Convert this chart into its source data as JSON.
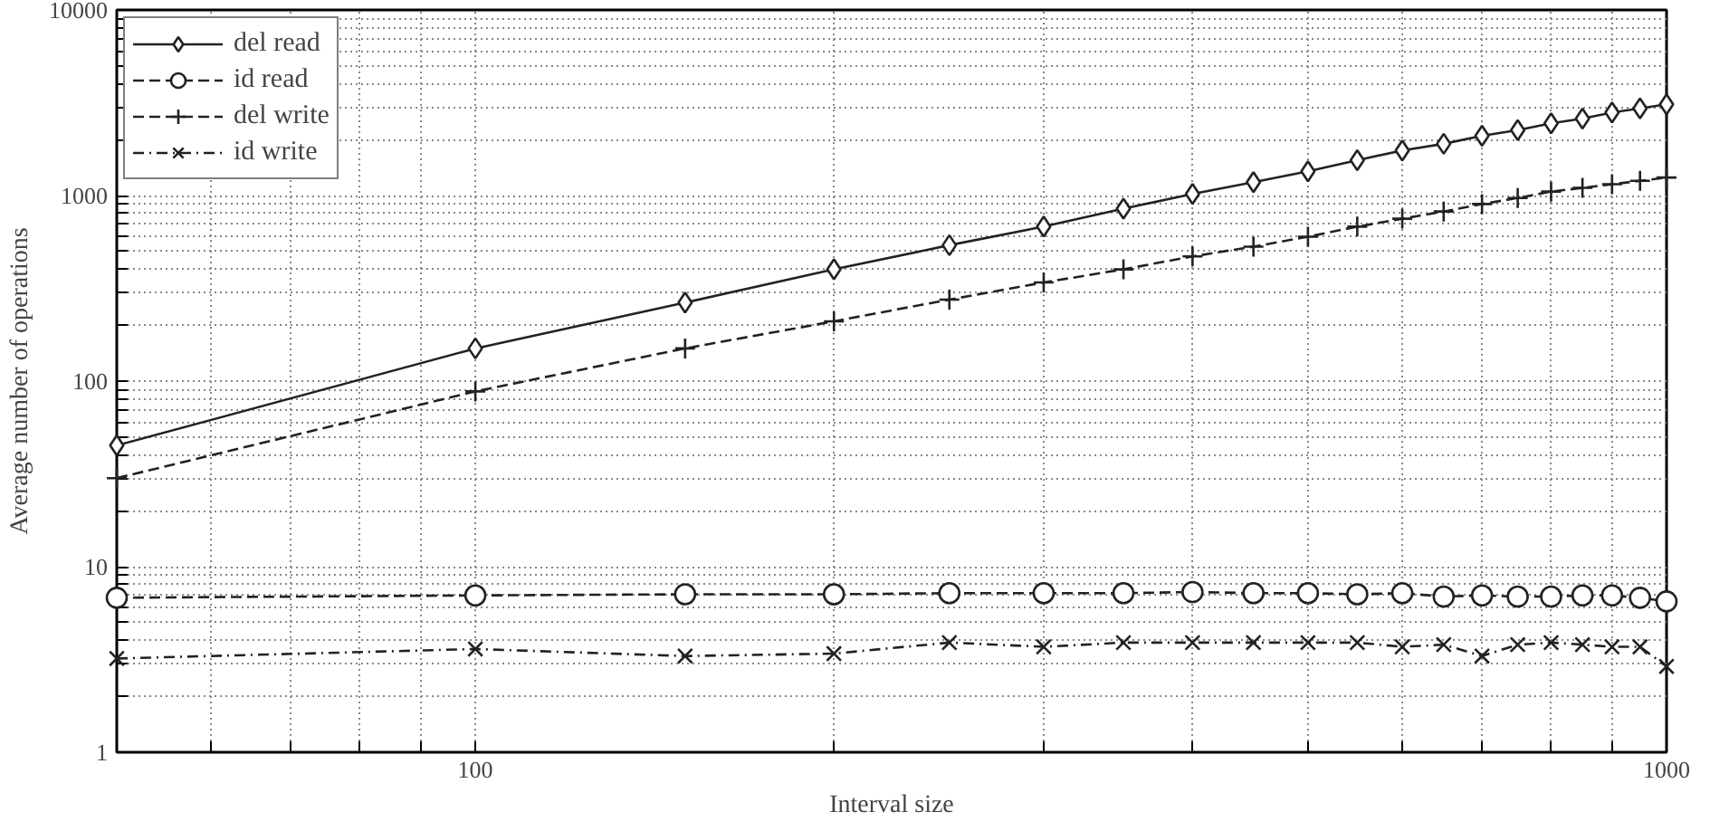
{
  "chart_data": {
    "type": "line",
    "xlabel": "Interval size",
    "ylabel": "Average number of operations",
    "log": "xy",
    "grid": true,
    "legend": "top left",
    "x": [
      50,
      100,
      150,
      200,
      250,
      300,
      350,
      400,
      450,
      500,
      550,
      600,
      650,
      700,
      750,
      800,
      850,
      900,
      950,
      1000
    ],
    "xlim": [
      50,
      1000
    ],
    "ylim": [
      1,
      10000
    ],
    "xticks": [
      {
        "value": 60,
        "label": null
      },
      {
        "value": 70,
        "label": null
      },
      {
        "value": 80,
        "label": null
      },
      {
        "value": 90,
        "label": null
      },
      100,
      {
        "value": 200,
        "label": null
      },
      {
        "value": 300,
        "label": null
      },
      {
        "value": 400,
        "label": null
      },
      {
        "value": 500,
        "label": null
      },
      {
        "value": 600,
        "label": null
      },
      {
        "value": 700,
        "label": null
      },
      {
        "value": 800,
        "label": null
      },
      {
        "value": 900,
        "label": null
      },
      1000
    ],
    "yticks": [
      1,
      {
        "value": 2,
        "label": null
      },
      {
        "value": 3,
        "label": null
      },
      {
        "value": 4,
        "label": null
      },
      {
        "value": 5,
        "label": null
      },
      {
        "value": 6,
        "label": null
      },
      {
        "value": 7,
        "label": null
      },
      {
        "value": 8,
        "label": null
      },
      {
        "value": 9,
        "label": null
      },
      10,
      {
        "value": 20,
        "label": null
      },
      {
        "value": 30,
        "label": null
      },
      {
        "value": 40,
        "label": null
      },
      {
        "value": 50,
        "label": null
      },
      {
        "value": 60,
        "label": null
      },
      {
        "value": 70,
        "label": null
      },
      {
        "value": 80,
        "label": null
      },
      {
        "value": 90,
        "label": null
      },
      100,
      {
        "value": 200,
        "label": null
      },
      {
        "value": 300,
        "label": null
      },
      {
        "value": 400,
        "label": null
      },
      {
        "value": 500,
        "label": null
      },
      {
        "value": 600,
        "label": null
      },
      {
        "value": 700,
        "label": null
      },
      {
        "value": 800,
        "label": null
      },
      {
        "value": 900,
        "label": null
      },
      1000,
      {
        "value": 2000,
        "label": null
      },
      {
        "value": 3000,
        "label": null
      },
      {
        "value": 4000,
        "label": null
      },
      {
        "value": 5000,
        "label": null
      },
      {
        "value": 6000,
        "label": null
      },
      {
        "value": 7000,
        "label": null
      },
      {
        "value": 8000,
        "label": null
      },
      {
        "value": 9000,
        "label": null
      },
      10000
    ],
    "series": [
      {
        "name": "del read",
        "color": "#222222",
        "marker": "diamond",
        "line_style": "solid",
        "values": [
          45,
          150,
          265,
          400,
          540,
          680,
          850,
          1020,
          1180,
          1350,
          1550,
          1750,
          1900,
          2100,
          2250,
          2450,
          2600,
          2800,
          2950,
          3100
        ]
      },
      {
        "name": "id read",
        "color": "#222222",
        "marker": "circle",
        "line_style": "dashed",
        "values": [
          6.8,
          7.0,
          7.1,
          7.1,
          7.2,
          7.2,
          7.2,
          7.3,
          7.2,
          7.2,
          7.1,
          7.2,
          6.9,
          7.0,
          6.9,
          6.9,
          7.0,
          7.0,
          6.8,
          6.5
        ]
      },
      {
        "name": "del write",
        "color": "#222222",
        "marker": "cross",
        "line_style": "dashed",
        "values": [
          30,
          88,
          150,
          210,
          275,
          340,
          400,
          470,
          530,
          600,
          680,
          750,
          820,
          900,
          970,
          1050,
          1100,
          1150,
          1200,
          1250
        ]
      },
      {
        "name": "id write",
        "color": "#222222",
        "marker": "x",
        "line_style": "dashdot",
        "values": [
          3.2,
          3.6,
          3.3,
          3.4,
          3.9,
          3.7,
          3.9,
          3.9,
          3.9,
          3.9,
          3.9,
          3.7,
          3.8,
          3.3,
          3.8,
          3.9,
          3.8,
          3.7,
          3.7,
          2.9
        ]
      }
    ]
  }
}
